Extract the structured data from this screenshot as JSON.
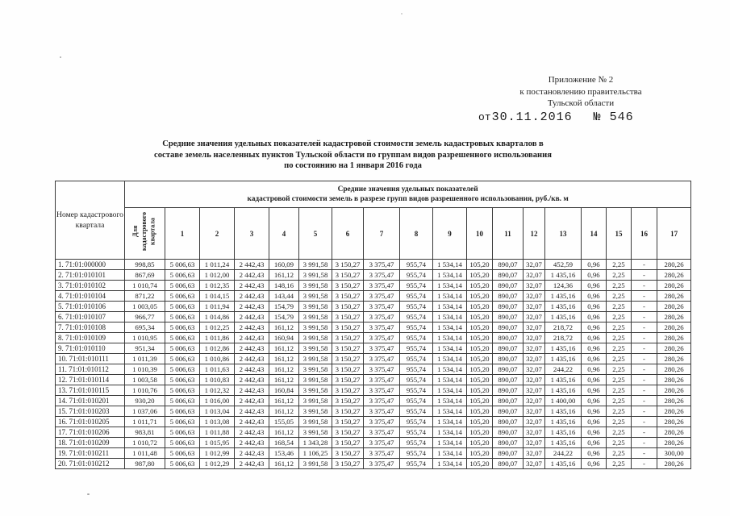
{
  "document": {
    "appendix": {
      "line1": "Приложение № 2",
      "line2": "к постановлению правительства",
      "line3": "Тульской области",
      "date_prefix": "от",
      "date": "30.11.2016",
      "doc_number": "№ 546"
    },
    "title_lines": [
      "Средние значения удельных показателей кадастровой стоимости земель кадастровых кварталов в",
      "составе земель населенных пунктов Тульской области  по группам видов разрешенного использования",
      "по состоянию на 1 января 2016 года"
    ]
  },
  "table": {
    "quarter_column_header": "Номер кадастрового квартала",
    "span_header_line1": "Средние значения удельных показателей",
    "span_header_line2": "кадастровой стоимости земель в разрезе групп видов разрешенного использования, руб./кв. м",
    "for_quarter_column_header": "Для кадастрового квартала",
    "group_columns": [
      "1",
      "2",
      "3",
      "4",
      "5",
      "6",
      "7",
      "8",
      "9",
      "10",
      "11",
      "12",
      "13",
      "14",
      "15",
      "16",
      "17"
    ],
    "rows": [
      {
        "label": "1. 71:01:000000",
        "values": [
          "998,85",
          "5 006,63",
          "1 011,24",
          "2 442,43",
          "160,09",
          "3 991,58",
          "3 150,27",
          "3 375,47",
          "955,74",
          "1 534,14",
          "105,20",
          "890,07",
          "32,07",
          "452,59",
          "0,96",
          "2,25",
          "-",
          "280,26"
        ]
      },
      {
        "label": "2. 71:01:010101",
        "values": [
          "867,69",
          "5 006,63",
          "1 012,00",
          "2 442,43",
          "161,12",
          "3 991,58",
          "3 150,27",
          "3 375,47",
          "955,74",
          "1 534,14",
          "105,20",
          "890,07",
          "32,07",
          "1 435,16",
          "0,96",
          "2,25",
          "-",
          "280,26"
        ]
      },
      {
        "label": "3. 71:01:010102",
        "values": [
          "1 010,74",
          "5 006,63",
          "1 012,35",
          "2 442,43",
          "148,16",
          "3 991,58",
          "3 150,27",
          "3 375,47",
          "955,74",
          "1 534,14",
          "105,20",
          "890,07",
          "32,07",
          "124,36",
          "0,96",
          "2,25",
          "-",
          "280,26"
        ]
      },
      {
        "label": "4. 71:01:010104",
        "values": [
          "871,22",
          "5 006,63",
          "1 014,15",
          "2 442,43",
          "143,44",
          "3 991,58",
          "3 150,27",
          "3 375,47",
          "955,74",
          "1 534,14",
          "105,20",
          "890,07",
          "32,07",
          "1 435,16",
          "0,96",
          "2,25",
          "-",
          "280,26"
        ]
      },
      {
        "label": "5. 71:01:010106",
        "values": [
          "1 003,05",
          "5 006,63",
          "1 011,94",
          "2 442,43",
          "154,79",
          "3 991,58",
          "3 150,27",
          "3 375,47",
          "955,74",
          "1 534,14",
          "105,20",
          "890,07",
          "32,07",
          "1 435,16",
          "0,96",
          "2,25",
          "-",
          "280,26"
        ]
      },
      {
        "label": "6. 71:01:010107",
        "values": [
          "966,77",
          "5 006,63",
          "1 014,86",
          "2 442,43",
          "154,79",
          "3 991,58",
          "3 150,27",
          "3 375,47",
          "955,74",
          "1 534,14",
          "105,20",
          "890,07",
          "32,07",
          "1 435,16",
          "0,96",
          "2,25",
          "-",
          "280,26"
        ]
      },
      {
        "label": "7. 71:01:010108",
        "values": [
          "695,34",
          "5 006,63",
          "1 012,25",
          "2 442,43",
          "161,12",
          "3 991,58",
          "3 150,27",
          "3 375,47",
          "955,74",
          "1 534,14",
          "105,20",
          "890,07",
          "32,07",
          "218,72",
          "0,96",
          "2,25",
          "-",
          "280,26"
        ]
      },
      {
        "label": "8. 71:01:010109",
        "values": [
          "1 010,95",
          "5 006,63",
          "1 011,86",
          "2 442,43",
          "160,94",
          "3 991,58",
          "3 150,27",
          "3 375,47",
          "955,74",
          "1 534,14",
          "105,20",
          "890,07",
          "32,07",
          "218,72",
          "0,96",
          "2,25",
          "-",
          "280,26"
        ]
      },
      {
        "label": "9. 71:01:010110",
        "values": [
          "951,34",
          "5 006,63",
          "1 012,86",
          "2 442,43",
          "161,12",
          "3 991,58",
          "3 150,27",
          "3 375,47",
          "955,74",
          "1 534,14",
          "105,20",
          "890,07",
          "32,07",
          "1 435,16",
          "0,96",
          "2,25",
          "-",
          "280,26"
        ]
      },
      {
        "label": "10. 71:01:010111",
        "values": [
          "1 011,39",
          "5 006,63",
          "1 010,86",
          "2 442,43",
          "161,12",
          "3 991,58",
          "3 150,27",
          "3 375,47",
          "955,74",
          "1 534,14",
          "105,20",
          "890,07",
          "32,07",
          "1 435,16",
          "0,96",
          "2,25",
          "-",
          "280,26"
        ]
      },
      {
        "label": "11. 71:01:010112",
        "values": [
          "1 010,39",
          "5 006,63",
          "1 011,63",
          "2 442,43",
          "161,12",
          "3 991,58",
          "3 150,27",
          "3 375,47",
          "955,74",
          "1 534,14",
          "105,20",
          "890,07",
          "32,07",
          "244,22",
          "0,96",
          "2,25",
          "-",
          "280,26"
        ]
      },
      {
        "label": "12. 71:01:010114",
        "values": [
          "1 003,58",
          "5 006,63",
          "1 010,83",
          "2 442,43",
          "161,12",
          "3 991,58",
          "3 150,27",
          "3 375,47",
          "955,74",
          "1 534,14",
          "105,20",
          "890,07",
          "32,07",
          "1 435,16",
          "0,96",
          "2,25",
          "-",
          "280,26"
        ]
      },
      {
        "label": "13. 71:01:010115",
        "values": [
          "1 010,76",
          "5 006,63",
          "1 012,32",
          "2 442,43",
          "160,84",
          "3 991,58",
          "3 150,27",
          "3 375,47",
          "955,74",
          "1 534,14",
          "105,20",
          "890,07",
          "32,07",
          "1 435,16",
          "0,96",
          "2,25",
          "-",
          "280,26"
        ]
      },
      {
        "label": "14. 71:01:010201",
        "values": [
          "930,20",
          "5 006,63",
          "1 016,00",
          "2 442,43",
          "161,12",
          "3 991,58",
          "3 150,27",
          "3 375,47",
          "955,74",
          "1 534,14",
          "105,20",
          "890,07",
          "32,07",
          "1 400,00",
          "0,96",
          "2,25",
          "-",
          "280,26"
        ]
      },
      {
        "label": "15. 71:01:010203",
        "values": [
          "1 037,06",
          "5 006,63",
          "1 013,04",
          "2 442,43",
          "161,12",
          "3 991,58",
          "3 150,27",
          "3 375,47",
          "955,74",
          "1 534,14",
          "105,20",
          "890,07",
          "32,07",
          "1 435,16",
          "0,96",
          "2,25",
          "-",
          "280,26"
        ]
      },
      {
        "label": "16. 71:01:010205",
        "values": [
          "1 011,71",
          "5 006,63",
          "1 013,08",
          "2 442,43",
          "155,05",
          "3 991,58",
          "3 150,27",
          "3 375,47",
          "955,74",
          "1 534,14",
          "105,20",
          "890,07",
          "32,07",
          "1 435,16",
          "0,96",
          "2,25",
          "-",
          "280,26"
        ]
      },
      {
        "label": "17. 71:01:010206",
        "values": [
          "983,81",
          "5 006,63",
          "1 011,88",
          "2 442,43",
          "161,12",
          "3 991,58",
          "3 150,27",
          "3 375,47",
          "955,74",
          "1 534,14",
          "105,20",
          "890,07",
          "32,07",
          "1 435,16",
          "0,96",
          "2,25",
          "-",
          "280,26"
        ]
      },
      {
        "label": "18. 71:01:010209",
        "values": [
          "1 010,72",
          "5 006,63",
          "1 015,95",
          "2 442,43",
          "168,54",
          "1 343,28",
          "3 150,27",
          "3 375,47",
          "955,74",
          "1 534,14",
          "105,20",
          "890,07",
          "32,07",
          "1 435,16",
          "0,96",
          "2,25",
          "-",
          "280,26"
        ]
      },
      {
        "label": "19. 71:01:010211",
        "values": [
          "1 011,48",
          "5 006,63",
          "1 012,99",
          "2 442,43",
          "153,46",
          "1 106,25",
          "3 150,27",
          "3 375,47",
          "955,74",
          "1 534,14",
          "105,20",
          "890,07",
          "32,07",
          "244,22",
          "0,96",
          "2,25",
          "-",
          "300,00"
        ]
      },
      {
        "label": "20. 71:01:010212",
        "values": [
          "987,80",
          "5 006,63",
          "1 012,29",
          "2 442,43",
          "161,12",
          "3 991,58",
          "3 150,27",
          "3 375,47",
          "955,74",
          "1 534,14",
          "105,20",
          "890,07",
          "32,07",
          "1 435,16",
          "0,96",
          "2,25",
          "-",
          "280,26"
        ]
      }
    ]
  }
}
